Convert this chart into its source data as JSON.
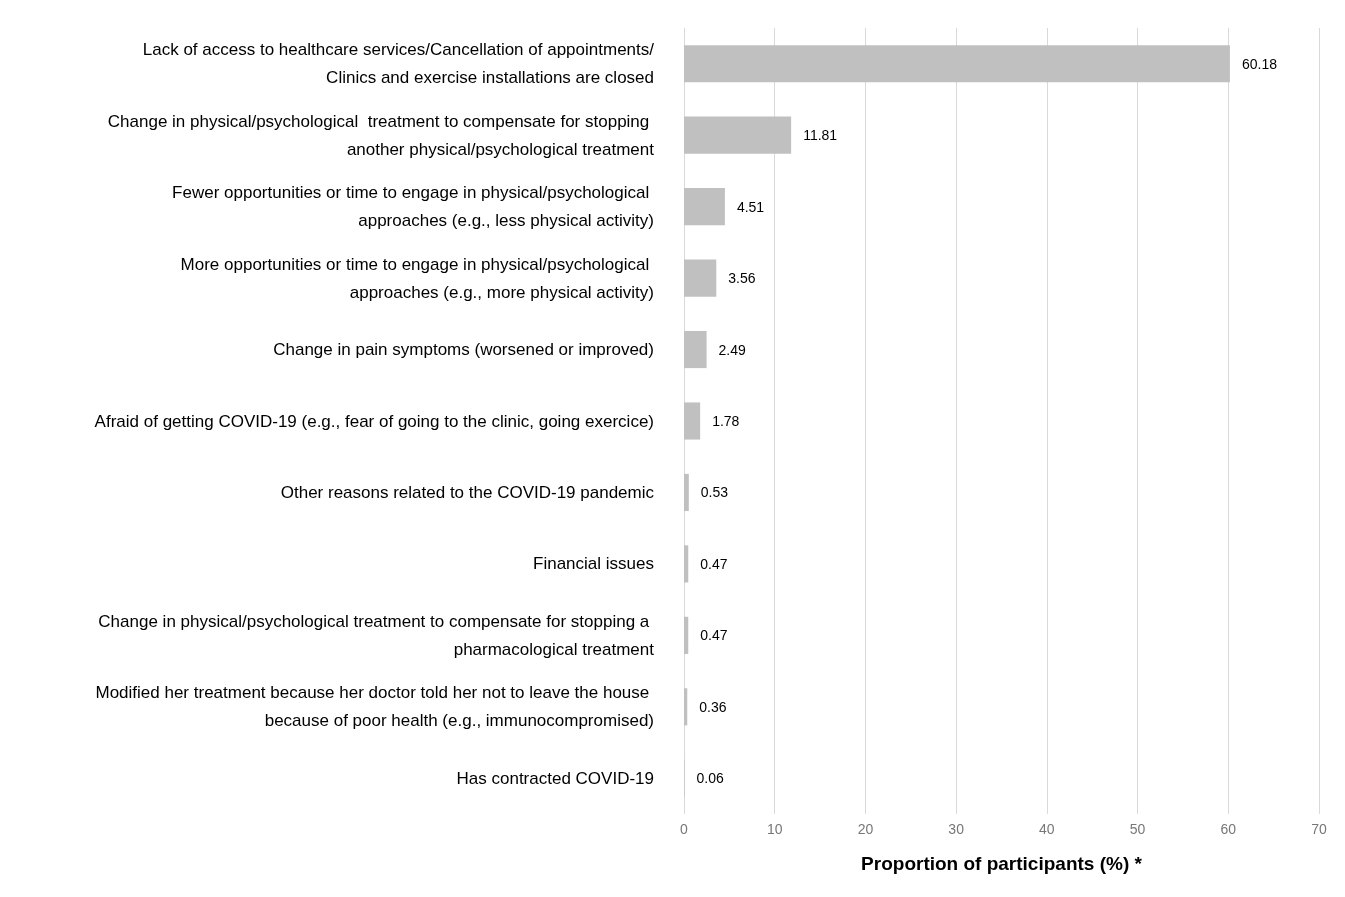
{
  "chart_data": {
    "type": "bar",
    "orientation": "horizontal",
    "categories": [
      "Lack of access to healthcare services/Cancellation of appointments/Clinics and exercise installations are closed",
      "Change in physical/psychological  treatment to compensate for stopping another physical/psychological treatment",
      "Fewer opportunities or time to engage in physical/psychological approaches (e.g., less physical activity)",
      "More opportunities or time to engage in physical/psychological approaches (e.g., more physical activity)",
      "Change in pain symptoms (worsened or improved)",
      "Afraid of getting COVID-19 (e.g., fear of going to the clinic, going exercice)",
      "Other reasons related to the COVID-19 pandemic",
      "Financial issues",
      "Change in physical/psychological treatment to compensate for stopping a pharmacological treatment",
      "Modified her treatment because her doctor told her not to leave the house because of poor health (e.g., immunocompromised)",
      "Has contracted COVID-19"
    ],
    "values": [
      60.18,
      11.81,
      4.51,
      3.56,
      2.49,
      1.78,
      0.53,
      0.47,
      0.47,
      0.36,
      0.06
    ],
    "color": "#c0c0c0",
    "xlim": [
      0,
      70
    ],
    "xticks": [
      0,
      10,
      20,
      30,
      40,
      50,
      60,
      70
    ],
    "xlabel": "Proportion of participants (%) *",
    "grid": "x",
    "data_labels": true
  }
}
